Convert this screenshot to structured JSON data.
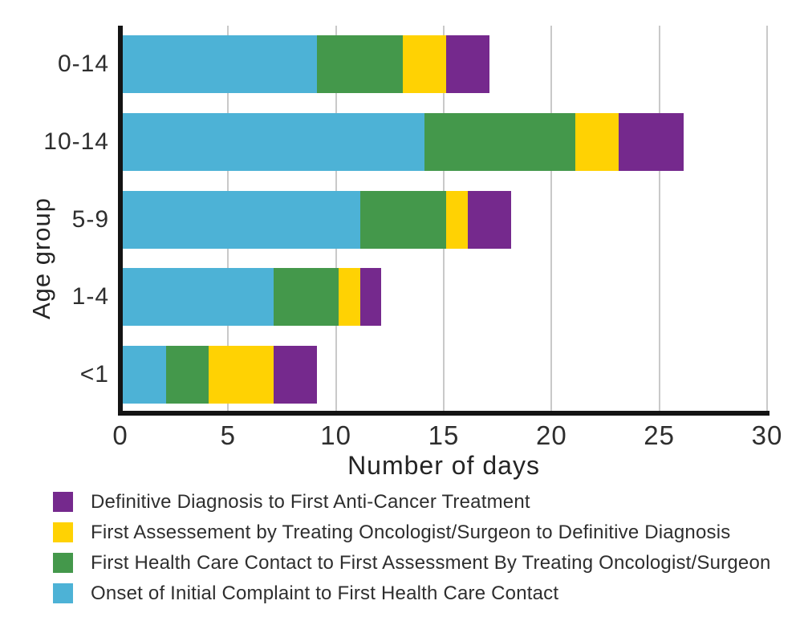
{
  "chart_data": {
    "type": "bar",
    "orientation": "horizontal",
    "stacked": true,
    "title": "",
    "xlabel": "Number of days",
    "ylabel": "Age group",
    "xlim": [
      0,
      30
    ],
    "xticks": [
      "0",
      "5",
      "10",
      "15",
      "20",
      "25",
      "30"
    ],
    "grid": true,
    "legend_position": "bottom",
    "categories": [
      "0-14",
      "10-14",
      "5-9",
      "1-4",
      "<1"
    ],
    "series": [
      {
        "name": "Onset of Initial Complaint to First Health Care Contact",
        "color": "#4DB2D6",
        "values": [
          9,
          14,
          11,
          7,
          2
        ]
      },
      {
        "name": "First Health Care Contact to First Assessment By Treating Oncologist/Surgeon",
        "color": "#44984B",
        "values": [
          4,
          7,
          4,
          3,
          2
        ]
      },
      {
        "name": "First Assessement by Treating Oncologist/Surgeon to Definitive Diagnosis",
        "color": "#FFD203",
        "values": [
          2,
          2,
          1,
          1,
          3
        ]
      },
      {
        "name": "Definitive Diagnosis to First Anti-Cancer Treatment",
        "color": "#75298D",
        "values": [
          2,
          3,
          2,
          1,
          2
        ]
      }
    ],
    "totals": [
      17,
      26,
      18,
      12,
      9
    ],
    "legend": [
      {
        "label": "Definitive Diagnosis to First Anti-Cancer Treatment",
        "color": "#75298D"
      },
      {
        "label": "First Assessement by Treating Oncologist/Surgeon to Definitive Diagnosis",
        "color": "#FFD203"
      },
      {
        "label": "First Health Care Contact to First Assessment By Treating Oncologist/Surgeon",
        "color": "#44984B"
      },
      {
        "label": "Onset of Initial Complaint to First Health Care Contact",
        "color": "#4DB2D6"
      }
    ]
  },
  "colors": {
    "axis_line": "#141414",
    "gridline": "#c9c9c9",
    "text": "#2e2e2e"
  }
}
